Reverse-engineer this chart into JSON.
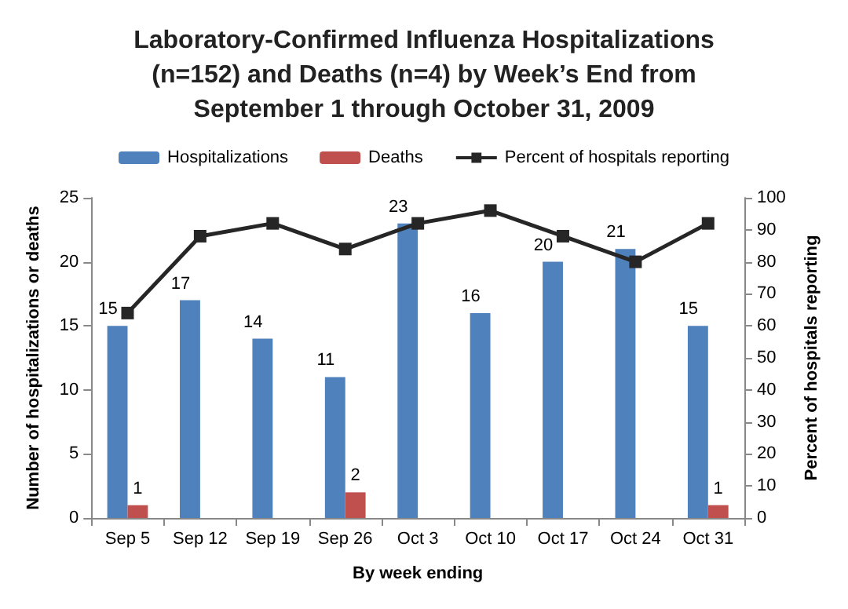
{
  "chart_data": {
    "type": "bar",
    "title": "Laboratory-Confirmed Influenza Hospitalizations\n(n=152) and Deaths (n=4) by Week’s End from\nSeptember 1 through October 31, 2009",
    "xlabel": "By week ending",
    "ylabel": "Number of hospitalizations or deaths",
    "y2label": "Percent of hospitals reporting",
    "categories": [
      "Sep 5",
      "Sep 12",
      "Sep 19",
      "Sep 26",
      "Oct 3",
      "Oct 10",
      "Oct 17",
      "Oct 24",
      "Oct 31"
    ],
    "series": [
      {
        "name": "Hospitalizations",
        "color": "#4f81bd",
        "values": [
          15,
          17,
          14,
          11,
          23,
          16,
          20,
          21,
          15
        ],
        "value_labels": [
          "15",
          "17",
          "14",
          "11",
          "23",
          "16",
          "20",
          "21",
          "15"
        ]
      },
      {
        "name": "Deaths",
        "color": "#c0504d",
        "values": [
          1,
          0,
          0,
          2,
          0,
          0,
          0,
          0,
          1
        ],
        "value_labels": [
          "1",
          null,
          null,
          "2",
          null,
          null,
          null,
          null,
          "1"
        ]
      },
      {
        "name": "Percent of hospitals reporting",
        "type": "line",
        "axis": "y2",
        "color": "#262626",
        "marker": "square",
        "values": [
          64,
          88,
          92,
          84,
          92,
          96,
          88,
          80,
          92
        ]
      }
    ],
    "ylim": [
      0,
      25
    ],
    "yticks": [
      0,
      5,
      10,
      15,
      20,
      25
    ],
    "y2lim": [
      0,
      100
    ],
    "y2ticks": [
      0,
      10,
      20,
      30,
      40,
      50,
      60,
      70,
      80,
      90,
      100
    ],
    "grid": false,
    "legend": "top"
  }
}
